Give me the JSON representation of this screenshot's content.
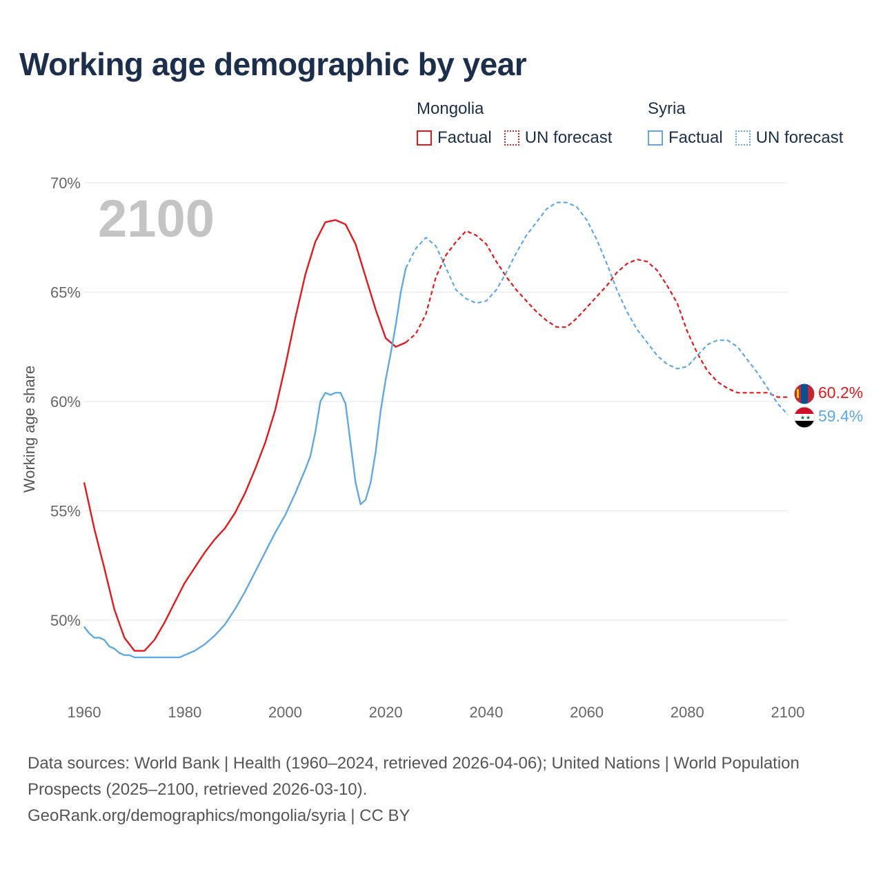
{
  "title": "Working age demographic by year",
  "legend": {
    "groups": [
      {
        "country": "Mongolia",
        "factual_label": "Factual",
        "forecast_label": "UN forecast",
        "color": "#e8161a"
      },
      {
        "country": "Syria",
        "factual_label": "Factual",
        "forecast_label": "UN forecast",
        "color": "#5da9e6"
      }
    ]
  },
  "footer": {
    "sources": "Data sources: World Bank | Health (1960–2024, retrieved 2026-04-06); United Nations | World Population Prospects (2025–2100, retrieved 2026-03-10).",
    "credit": "GeoRank.org/demographics/mongolia/syria | CC BY"
  },
  "chart_data": {
    "type": "line",
    "title": "Working age demographic by year",
    "xlabel": "",
    "ylabel": "Working age share",
    "year_overlay": "2100",
    "xlim": [
      1960,
      2100
    ],
    "ylim": [
      47,
      70
    ],
    "x_ticks": [
      "1960",
      "1980",
      "2000",
      "2020",
      "2040",
      "2060",
      "2080",
      "2100"
    ],
    "y_ticks": [
      {
        "value": 50,
        "label": "50%"
      },
      {
        "value": 55,
        "label": "55%"
      },
      {
        "value": 60,
        "label": "60%"
      },
      {
        "value": 65,
        "label": "65%"
      },
      {
        "value": 70,
        "label": "70%"
      }
    ],
    "series": [
      {
        "name": "Mongolia",
        "color": "#e8161a",
        "end_label": "60.2%",
        "flag": "mongolia-flag",
        "factual": [
          [
            1960,
            56.3
          ],
          [
            1962,
            54.2
          ],
          [
            1964,
            52.4
          ],
          [
            1966,
            50.5
          ],
          [
            1968,
            49.2
          ],
          [
            1970,
            48.6
          ],
          [
            1972,
            48.6
          ],
          [
            1974,
            49.1
          ],
          [
            1976,
            49.9
          ],
          [
            1978,
            50.8
          ],
          [
            1980,
            51.7
          ],
          [
            1982,
            52.4
          ],
          [
            1984,
            53.1
          ],
          [
            1986,
            53.7
          ],
          [
            1988,
            54.2
          ],
          [
            1990,
            54.9
          ],
          [
            1992,
            55.8
          ],
          [
            1994,
            56.9
          ],
          [
            1996,
            58.1
          ],
          [
            1998,
            59.6
          ],
          [
            2000,
            61.6
          ],
          [
            2002,
            63.8
          ],
          [
            2004,
            65.8
          ],
          [
            2006,
            67.3
          ],
          [
            2008,
            68.2
          ],
          [
            2010,
            68.3
          ],
          [
            2012,
            68.1
          ],
          [
            2014,
            67.2
          ],
          [
            2016,
            65.7
          ],
          [
            2018,
            64.2
          ],
          [
            2020,
            62.9
          ],
          [
            2022,
            62.5
          ],
          [
            2024,
            62.7
          ]
        ],
        "forecast": [
          [
            2024,
            62.7
          ],
          [
            2026,
            63.1
          ],
          [
            2028,
            64.0
          ],
          [
            2030,
            65.7
          ],
          [
            2032,
            66.7
          ],
          [
            2034,
            67.3
          ],
          [
            2036,
            67.8
          ],
          [
            2038,
            67.6
          ],
          [
            2040,
            67.2
          ],
          [
            2042,
            66.4
          ],
          [
            2044,
            65.7
          ],
          [
            2046,
            65.1
          ],
          [
            2048,
            64.6
          ],
          [
            2050,
            64.1
          ],
          [
            2052,
            63.7
          ],
          [
            2054,
            63.4
          ],
          [
            2056,
            63.4
          ],
          [
            2058,
            63.8
          ],
          [
            2060,
            64.3
          ],
          [
            2062,
            64.8
          ],
          [
            2064,
            65.3
          ],
          [
            2066,
            65.9
          ],
          [
            2068,
            66.3
          ],
          [
            2070,
            66.5
          ],
          [
            2072,
            66.4
          ],
          [
            2074,
            66.0
          ],
          [
            2076,
            65.3
          ],
          [
            2078,
            64.5
          ],
          [
            2080,
            63.2
          ],
          [
            2082,
            62.2
          ],
          [
            2084,
            61.4
          ],
          [
            2086,
            60.9
          ],
          [
            2088,
            60.6
          ],
          [
            2090,
            60.4
          ],
          [
            2092,
            60.4
          ],
          [
            2094,
            60.4
          ],
          [
            2096,
            60.4
          ],
          [
            2098,
            60.2
          ],
          [
            2100,
            60.2
          ]
        ]
      },
      {
        "name": "Syria",
        "color": "#5da9e6",
        "end_label": "59.4%",
        "flag": "syria-flag",
        "factual": [
          [
            1960,
            49.7
          ],
          [
            1961,
            49.4
          ],
          [
            1962,
            49.2
          ],
          [
            1963,
            49.2
          ],
          [
            1964,
            49.1
          ],
          [
            1965,
            48.8
          ],
          [
            1966,
            48.7
          ],
          [
            1967,
            48.5
          ],
          [
            1968,
            48.4
          ],
          [
            1969,
            48.4
          ],
          [
            1970,
            48.3
          ],
          [
            1975,
            48.3
          ],
          [
            1979,
            48.3
          ],
          [
            1980,
            48.4
          ],
          [
            1982,
            48.6
          ],
          [
            1984,
            48.9
          ],
          [
            1986,
            49.3
          ],
          [
            1988,
            49.8
          ],
          [
            1990,
            50.5
          ],
          [
            1992,
            51.3
          ],
          [
            1994,
            52.2
          ],
          [
            1996,
            53.1
          ],
          [
            1998,
            54.0
          ],
          [
            2000,
            54.8
          ],
          [
            2002,
            55.8
          ],
          [
            2004,
            56.9
          ],
          [
            2005,
            57.5
          ],
          [
            2006,
            58.6
          ],
          [
            2007,
            60.0
          ],
          [
            2008,
            60.4
          ],
          [
            2009,
            60.3
          ],
          [
            2010,
            60.4
          ],
          [
            2011,
            60.4
          ],
          [
            2012,
            59.9
          ],
          [
            2013,
            58.1
          ],
          [
            2014,
            56.3
          ],
          [
            2015,
            55.3
          ],
          [
            2016,
            55.5
          ],
          [
            2017,
            56.3
          ],
          [
            2018,
            57.7
          ],
          [
            2019,
            59.6
          ],
          [
            2020,
            61.0
          ],
          [
            2021,
            62.2
          ],
          [
            2022,
            63.5
          ],
          [
            2023,
            65.0
          ],
          [
            2024,
            66.1
          ]
        ],
        "forecast": [
          [
            2024,
            66.1
          ],
          [
            2026,
            67.0
          ],
          [
            2028,
            67.5
          ],
          [
            2030,
            67.1
          ],
          [
            2032,
            66.1
          ],
          [
            2034,
            65.1
          ],
          [
            2036,
            64.7
          ],
          [
            2038,
            64.5
          ],
          [
            2040,
            64.6
          ],
          [
            2042,
            65.1
          ],
          [
            2044,
            65.9
          ],
          [
            2046,
            66.8
          ],
          [
            2048,
            67.6
          ],
          [
            2050,
            68.2
          ],
          [
            2052,
            68.8
          ],
          [
            2054,
            69.1
          ],
          [
            2056,
            69.1
          ],
          [
            2058,
            68.9
          ],
          [
            2060,
            68.3
          ],
          [
            2062,
            67.4
          ],
          [
            2064,
            66.3
          ],
          [
            2066,
            65.1
          ],
          [
            2068,
            64.1
          ],
          [
            2070,
            63.3
          ],
          [
            2072,
            62.7
          ],
          [
            2074,
            62.1
          ],
          [
            2076,
            61.7
          ],
          [
            2078,
            61.5
          ],
          [
            2080,
            61.6
          ],
          [
            2082,
            62.1
          ],
          [
            2084,
            62.6
          ],
          [
            2086,
            62.8
          ],
          [
            2088,
            62.8
          ],
          [
            2090,
            62.5
          ],
          [
            2092,
            61.9
          ],
          [
            2094,
            61.3
          ],
          [
            2096,
            60.6
          ],
          [
            2098,
            59.9
          ],
          [
            2100,
            59.4
          ]
        ]
      }
    ]
  }
}
